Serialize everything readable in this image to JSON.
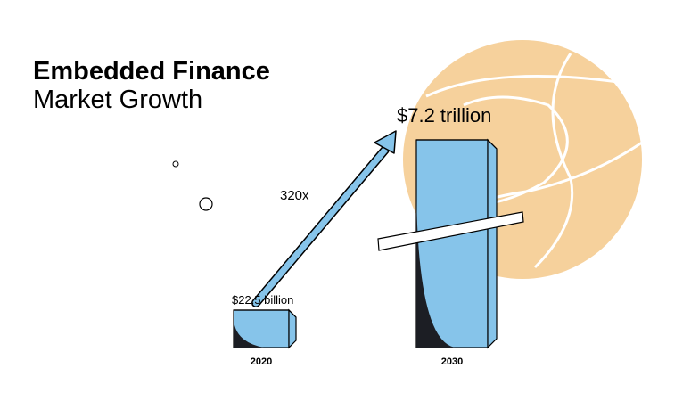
{
  "title_line1": "Embedded Finance",
  "title_line2": "Market Growth",
  "chart_data": {
    "type": "bar",
    "title": "Embedded Finance Market Growth",
    "categories": [
      "2020",
      "2030"
    ],
    "values": [
      22.5,
      7200
    ],
    "unit": "billion USD",
    "data_labels": [
      "$22.5 billion",
      "$7.2 trillion"
    ],
    "annotation": "320x",
    "xlabel": "",
    "ylabel": ""
  },
  "colors": {
    "bar_fill": "#86c4ea",
    "shadow": "#1c1e24",
    "sun": "#f6d19c",
    "outline": "#000000",
    "background": "#ffffff"
  },
  "icons": [
    "growth-arrow-icon",
    "decorative-sun-icon"
  ]
}
